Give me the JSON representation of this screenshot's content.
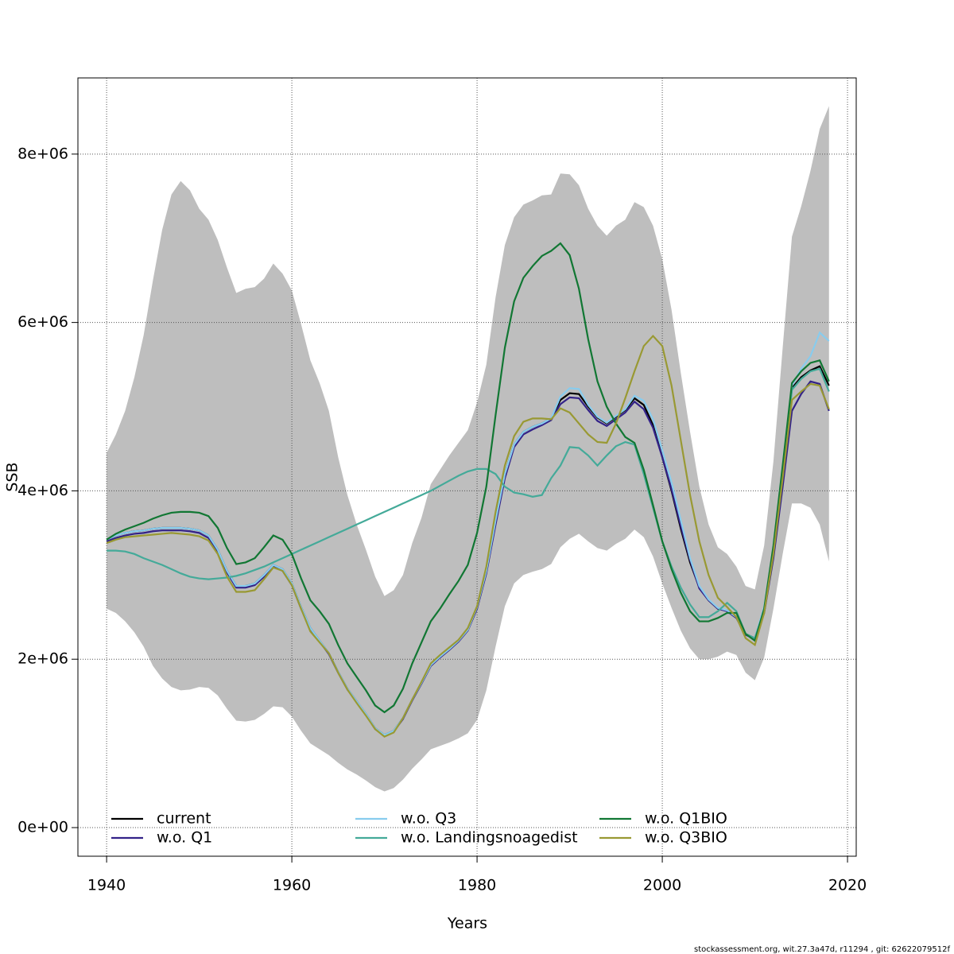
{
  "chart_data": {
    "type": "line",
    "x_label": "Years",
    "y_label": "SSB",
    "footer": "stockassessment.org, wit.27.3a47d, r11294 , git: 62622079512f",
    "xlim": [
      1936.9,
      2020.94
    ],
    "ylim": [
      -340000,
      8905000
    ],
    "xticks": [
      1940,
      1960,
      1980,
      2000,
      2020
    ],
    "yticks": [
      {
        "value": 0,
        "label": "0e+00"
      },
      {
        "value": 2000000,
        "label": "2e+06"
      },
      {
        "value": 4000000,
        "label": "4e+06"
      },
      {
        "value": 6000000,
        "label": "6e+06"
      },
      {
        "value": 8000000,
        "label": "8e+06"
      }
    ],
    "grid": true,
    "legend": "bottom",
    "x": [
      1940,
      1941,
      1942,
      1943,
      1944,
      1945,
      1946,
      1947,
      1948,
      1949,
      1950,
      1951,
      1952,
      1953,
      1954,
      1955,
      1956,
      1957,
      1958,
      1959,
      1960,
      1961,
      1962,
      1963,
      1964,
      1965,
      1966,
      1967,
      1968,
      1969,
      1970,
      1971,
      1972,
      1973,
      1974,
      1975,
      1976,
      1977,
      1978,
      1979,
      1980,
      1981,
      1982,
      1983,
      1984,
      1985,
      1986,
      1987,
      1988,
      1989,
      1990,
      1991,
      1992,
      1993,
      1994,
      1995,
      1996,
      1997,
      1998,
      1999,
      2000,
      2001,
      2002,
      2003,
      2004,
      2005,
      2006,
      2007,
      2008,
      2009,
      2010,
      2011,
      2012,
      2013,
      2014,
      2015,
      2016,
      2017,
      2018
    ],
    "band": {
      "color": "#bebebe",
      "upper": [
        4450000.0,
        4670000.0,
        4950000.0,
        5350000.0,
        5850000.0,
        6500000.0,
        7100000.0,
        7520000.0,
        7680000.0,
        7570000.0,
        7350000.0,
        7220000.0,
        6980000.0,
        6650000.0,
        6350000.0,
        6400000.0,
        6420000.0,
        6520000.0,
        6700000.0,
        6580000.0,
        6380000.0,
        5980000.0,
        5550000.0,
        5280000.0,
        4950000.0,
        4400000.0,
        3950000.0,
        3600000.0,
        3300000.0,
        2980000.0,
        2750000.0,
        2820000.0,
        3000000.0,
        3380000.0,
        3680000.0,
        4080000.0,
        4250000.0,
        4420000.0,
        4570000.0,
        4720000.0,
        5050000.0,
        5500000.0,
        6300000.0,
        6920000.0,
        7250000.0,
        7400000.0,
        7450000.0,
        7510000.0,
        7520000.0,
        7770000.0,
        7760000.0,
        7630000.0,
        7350000.0,
        7150000.0,
        7030000.0,
        7150000.0,
        7220000.0,
        7430000.0,
        7370000.0,
        7150000.0,
        6750000.0,
        6150000.0,
        5400000.0,
        4700000.0,
        4050000.0,
        3600000.0,
        3330000.0,
        3250000.0,
        3100000.0,
        2870000.0,
        2830000.0,
        3350000.0,
        4350000.0,
        5700000.0,
        7020000.0,
        7380000.0,
        7800000.0,
        8300000.0,
        8570000.0
      ],
      "lower": [
        2600000.0,
        2550000.0,
        2450000.0,
        2320000.0,
        2150000.0,
        1920000.0,
        1770000.0,
        1670000.0,
        1630000.0,
        1640000.0,
        1670000.0,
        1660000.0,
        1570000.0,
        1410000.0,
        1270000.0,
        1260000.0,
        1280000.0,
        1350000.0,
        1440000.0,
        1430000.0,
        1320000.0,
        1150000.0,
        1000000.0,
        930000.0,
        860000.0,
        770000.0,
        690000.0,
        630000.0,
        560000.0,
        480000.0,
        430000.0,
        470000.0,
        570000.0,
        700000.0,
        810000.0,
        930000.0,
        970000.0,
        1010000.0,
        1060000.0,
        1120000.0,
        1280000.0,
        1630000.0,
        2150000.0,
        2630000.0,
        2900000.0,
        3000000.0,
        3040000.0,
        3070000.0,
        3130000.0,
        3330000.0,
        3430000.0,
        3490000.0,
        3400000.0,
        3320000.0,
        3290000.0,
        3370000.0,
        3430000.0,
        3540000.0,
        3450000.0,
        3220000.0,
        2900000.0,
        2610000.0,
        2340000.0,
        2130000.0,
        2000000.0,
        2000000.0,
        2030000.0,
        2090000.0,
        2050000.0,
        1840000.0,
        1750000.0,
        2020000.0,
        2600000.0,
        3250000.0,
        3850000.0,
        3850000.0,
        3800000.0,
        3600000.0,
        3160000.0
      ]
    },
    "series": [
      {
        "name": "current",
        "color": "#000000",
        "values": [
          3420000.0,
          3470000.0,
          3500000.0,
          3520000.0,
          3530000.0,
          3550000.0,
          3560000.0,
          3560000.0,
          3560000.0,
          3550000.0,
          3530000.0,
          3470000.0,
          3300000.0,
          3050000.0,
          2870000.0,
          2870000.0,
          2900000.0,
          3000000.0,
          3120000.0,
          3070000.0,
          2900000.0,
          2620000.0,
          2370000.0,
          2220000.0,
          2070000.0,
          1850000.0,
          1650000.0,
          1500000.0,
          1350000.0,
          1180000.0,
          1100000.0,
          1150000.0,
          1300000.0,
          1520000.0,
          1720000.0,
          1930000.0,
          2030000.0,
          2120000.0,
          2220000.0,
          2350000.0,
          2620000.0,
          3050000.0,
          3650000.0,
          4200000.0,
          4550000.0,
          4700000.0,
          4760000.0,
          4800000.0,
          4860000.0,
          5080000.0,
          5160000.0,
          5150000.0,
          5000000.0,
          4870000.0,
          4800000.0,
          4880000.0,
          4960000.0,
          5100000.0,
          5020000.0,
          4780000.0,
          4400000.0,
          4000000.0,
          3550000.0,
          3150000.0,
          2850000.0,
          2700000.0,
          2600000.0,
          2580000.0,
          2500000.0,
          2300000.0,
          2250000.0,
          2600000.0,
          3300000.0,
          4250000.0,
          5220000.0,
          5350000.0,
          5430000.0,
          5480000.0,
          5250000.0
        ]
      },
      {
        "name": "w.o. Q1",
        "color": "#332288",
        "values": [
          3400000.0,
          3440000.0,
          3470000.0,
          3490000.0,
          3500000.0,
          3520000.0,
          3530000.0,
          3530000.0,
          3530000.0,
          3520000.0,
          3500000.0,
          3440000.0,
          3270000.0,
          3030000.0,
          2850000.0,
          2850000.0,
          2880000.0,
          2980000.0,
          3100000.0,
          3050000.0,
          2880000.0,
          2600000.0,
          2360000.0,
          2210000.0,
          2060000.0,
          1840000.0,
          1640000.0,
          1490000.0,
          1340000.0,
          1170000.0,
          1090000.0,
          1140000.0,
          1290000.0,
          1510000.0,
          1710000.0,
          1920000.0,
          2020000.0,
          2110000.0,
          2210000.0,
          2340000.0,
          2600000.0,
          3020000.0,
          3600000.0,
          4150000.0,
          4520000.0,
          4670000.0,
          4730000.0,
          4780000.0,
          4840000.0,
          5030000.0,
          5110000.0,
          5100000.0,
          4960000.0,
          4830000.0,
          4770000.0,
          4850000.0,
          4930000.0,
          5060000.0,
          4970000.0,
          4750000.0,
          4400000.0,
          4020000.0,
          3580000.0,
          3180000.0,
          2840000.0,
          2700000.0,
          2600000.0,
          2570000.0,
          2490000.0,
          2290000.0,
          2240000.0,
          2550000.0,
          3200000.0,
          4050000.0,
          4950000.0,
          5150000.0,
          5300000.0,
          5270000.0,
          4950000.0
        ]
      },
      {
        "name": "w.o. Q3",
        "color": "#88ccee",
        "values": [
          3420000.0,
          3470000.0,
          3500000.0,
          3520000.0,
          3530000.0,
          3550000.0,
          3560000.0,
          3560000.0,
          3560000.0,
          3550000.0,
          3530000.0,
          3470000.0,
          3300000.0,
          3050000.0,
          2870000.0,
          2870000.0,
          2900000.0,
          3000000.0,
          3120000.0,
          3070000.0,
          2900000.0,
          2620000.0,
          2370000.0,
          2220000.0,
          2070000.0,
          1850000.0,
          1650000.0,
          1500000.0,
          1350000.0,
          1180000.0,
          1100000.0,
          1150000.0,
          1300000.0,
          1520000.0,
          1720000.0,
          1930000.0,
          2030000.0,
          2120000.0,
          2220000.0,
          2350000.0,
          2620000.0,
          3050000.0,
          3650000.0,
          4200000.0,
          4550000.0,
          4700000.0,
          4760000.0,
          4800000.0,
          4860000.0,
          5120000.0,
          5220000.0,
          5210000.0,
          5020000.0,
          4880000.0,
          4810000.0,
          4890000.0,
          4970000.0,
          5130000.0,
          5070000.0,
          4850000.0,
          4480000.0,
          4100000.0,
          3650000.0,
          3200000.0,
          2870000.0,
          2710000.0,
          2610000.0,
          2580000.0,
          2500000.0,
          2300000.0,
          2250000.0,
          2620000.0,
          3320000.0,
          4280000.0,
          5250000.0,
          5450000.0,
          5600000.0,
          5880000.0,
          5780000.0
        ]
      },
      {
        "name": "w.o. Landingsnoagedist",
        "color": "#44aa99",
        "values": [
          3290000.0,
          3290000.0,
          3280000.0,
          3250000.0,
          3200000.0,
          3160000.0,
          3120000.0,
          3070000.0,
          3020000.0,
          2980000.0,
          2960000.0,
          2950000.0,
          2960000.0,
          2970000.0,
          2990000.0,
          3020000.0,
          3060000.0,
          3100000.0,
          3150000.0,
          3200000.0,
          3250000.0,
          3300000.0,
          3350000.0,
          3400000.0,
          3450000.0,
          3500000.0,
          3550000.0,
          3600000.0,
          3650000.0,
          3700000.0,
          3750000.0,
          3800000.0,
          3850000.0,
          3900000.0,
          3950000.0,
          4000000.0,
          4060000.0,
          4120000.0,
          4180000.0,
          4230000.0,
          4260000.0,
          4260000.0,
          4200000.0,
          4050000.0,
          3980000.0,
          3960000.0,
          3930000.0,
          3950000.0,
          4150000.0,
          4300000.0,
          4520000.0,
          4510000.0,
          4420000.0,
          4300000.0,
          4420000.0,
          4530000.0,
          4580000.0,
          4550000.0,
          4200000.0,
          3800000.0,
          3400000.0,
          3100000.0,
          2850000.0,
          2650000.0,
          2500000.0,
          2500000.0,
          2570000.0,
          2670000.0,
          2570000.0,
          2300000.0,
          2250000.0,
          2580000.0,
          3280000.0,
          4200000.0,
          5200000.0,
          5330000.0,
          5420000.0,
          5450000.0,
          5180000.0
        ]
      },
      {
        "name": "w.o. Q1BIO",
        "color": "#117733",
        "values": [
          3420000.0,
          3490000.0,
          3540000.0,
          3580000.0,
          3620000.0,
          3670000.0,
          3710000.0,
          3740000.0,
          3750000.0,
          3750000.0,
          3740000.0,
          3700000.0,
          3560000.0,
          3320000.0,
          3130000.0,
          3150000.0,
          3200000.0,
          3330000.0,
          3470000.0,
          3420000.0,
          3250000.0,
          2960000.0,
          2700000.0,
          2570000.0,
          2420000.0,
          2170000.0,
          1950000.0,
          1790000.0,
          1630000.0,
          1450000.0,
          1370000.0,
          1450000.0,
          1650000.0,
          1950000.0,
          2200000.0,
          2450000.0,
          2600000.0,
          2770000.0,
          2930000.0,
          3120000.0,
          3500000.0,
          4050000.0,
          4900000.0,
          5700000.0,
          6250000.0,
          6530000.0,
          6670000.0,
          6790000.0,
          6850000.0,
          6940000.0,
          6800000.0,
          6400000.0,
          5800000.0,
          5300000.0,
          5000000.0,
          4800000.0,
          4640000.0,
          4570000.0,
          4250000.0,
          3830000.0,
          3400000.0,
          3070000.0,
          2790000.0,
          2570000.0,
          2450000.0,
          2450000.0,
          2490000.0,
          2550000.0,
          2550000.0,
          2300000.0,
          2220000.0,
          2600000.0,
          3350000.0,
          4300000.0,
          5280000.0,
          5420000.0,
          5520000.0,
          5550000.0,
          5300000.0
        ]
      },
      {
        "name": "w.o. Q3BIO",
        "color": "#999933",
        "values": [
          3380000.0,
          3420000.0,
          3450000.0,
          3460000.0,
          3470000.0,
          3480000.0,
          3490000.0,
          3500000.0,
          3490000.0,
          3480000.0,
          3460000.0,
          3410000.0,
          3250000.0,
          2980000.0,
          2800000.0,
          2800000.0,
          2820000.0,
          2950000.0,
          3090000.0,
          3050000.0,
          2880000.0,
          2600000.0,
          2330000.0,
          2200000.0,
          2070000.0,
          1840000.0,
          1640000.0,
          1480000.0,
          1330000.0,
          1170000.0,
          1080000.0,
          1130000.0,
          1300000.0,
          1520000.0,
          1730000.0,
          1950000.0,
          2050000.0,
          2140000.0,
          2230000.0,
          2370000.0,
          2630000.0,
          3100000.0,
          3750000.0,
          4300000.0,
          4650000.0,
          4820000.0,
          4860000.0,
          4860000.0,
          4850000.0,
          4980000.0,
          4930000.0,
          4800000.0,
          4670000.0,
          4580000.0,
          4570000.0,
          4800000.0,
          5100000.0,
          5420000.0,
          5720000.0,
          5840000.0,
          5720000.0,
          5250000.0,
          4600000.0,
          3950000.0,
          3400000.0,
          3000000.0,
          2730000.0,
          2620000.0,
          2500000.0,
          2250000.0,
          2170000.0,
          2550000.0,
          3250000.0,
          4150000.0,
          5080000.0,
          5180000.0,
          5270000.0,
          5250000.0,
          4970000.0
        ]
      }
    ]
  }
}
